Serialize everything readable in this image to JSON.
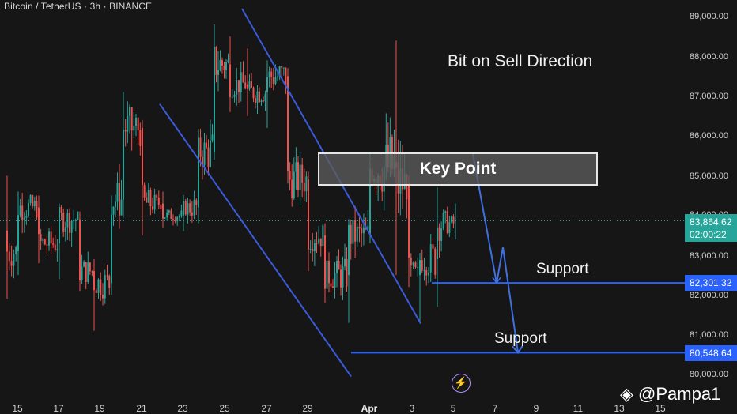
{
  "symbol": "Bitcoin / TetherUS · 3h · BINANCE",
  "annotations": {
    "direction": "Bit on Sell Direction",
    "key_point": "Key Point",
    "support_1": "Support",
    "support_2": "Support"
  },
  "price_tags": {
    "current_price": "83,864.62",
    "countdown": "02:00:22",
    "support_1": "82,301.32",
    "support_2": "80,548.64"
  },
  "y_axis_ticks": [
    "89,000.00",
    "88,000.00",
    "87,000.00",
    "86,000.00",
    "85,000.00",
    "84,000.00",
    "83,000.00",
    "82,000.00",
    "81,000.00",
    "80,000.00"
  ],
  "x_axis_ticks": [
    "15",
    "17",
    "19",
    "21",
    "23",
    "25",
    "27",
    "29",
    "Apr",
    "3",
    "5",
    "7",
    "9",
    "11",
    "13",
    "15"
  ],
  "watermark": "@Pampa1",
  "colors": {
    "background": "#161616",
    "up_candle": "#26a69a",
    "down_candle": "#ef5350",
    "trendline": "#3b5bdb",
    "support_line": "#2962ff",
    "projection_arrow": "#3f6fe0"
  },
  "chart_data": {
    "type": "candlestick",
    "title": "Bitcoin / TetherUS · 3h · BINANCE",
    "ylim": [
      79950,
      89200
    ],
    "current_price": 83864.62,
    "support_levels": [
      82301.32,
      80548.64
    ],
    "key_point_zone": [
      84860,
      85600
    ],
    "channel_lines": [
      {
        "from": [
          "Mar 20",
          86800
        ],
        "to": [
          "Mar 31",
          79950
        ]
      },
      {
        "from": [
          "Mar 24",
          89200
        ],
        "to": [
          "Apr 3",
          81280
        ]
      }
    ],
    "projection_path": [
      [
        "Apr 5",
        85550
      ],
      [
        "Apr 7",
        82301.32
      ],
      [
        "Apr 7",
        83200
      ],
      [
        "Apr 8",
        80548.64
      ]
    ],
    "candles": [
      {
        "t": "Mar 14",
        "o": 83620,
        "h": 85000,
        "l": 81900,
        "c": 83100
      },
      {
        "t": "Mar 15",
        "o": 83100,
        "h": 84600,
        "l": 82500,
        "c": 84200
      },
      {
        "t": "Mar 16",
        "o": 84200,
        "h": 84500,
        "l": 82800,
        "c": 83300
      },
      {
        "t": "Mar 17",
        "o": 83300,
        "h": 84300,
        "l": 82400,
        "c": 83900
      },
      {
        "t": "Mar 18",
        "o": 83900,
        "h": 84100,
        "l": 82100,
        "c": 82600
      },
      {
        "t": "Mar 19",
        "o": 82600,
        "h": 82900,
        "l": 81100,
        "c": 82300
      },
      {
        "t": "Mar 19b",
        "o": 82300,
        "h": 84500,
        "l": 82000,
        "c": 84400
      },
      {
        "t": "Mar 20",
        "o": 84400,
        "h": 87100,
        "l": 84000,
        "c": 86200
      },
      {
        "t": "Mar 21",
        "o": 86200,
        "h": 86400,
        "l": 83500,
        "c": 84300
      },
      {
        "t": "Mar 22",
        "o": 84300,
        "h": 84600,
        "l": 83700,
        "c": 84000
      },
      {
        "t": "Mar 23",
        "o": 84000,
        "h": 84500,
        "l": 83600,
        "c": 84200
      },
      {
        "t": "Mar 23b",
        "o": 84200,
        "h": 85800,
        "l": 83800,
        "c": 85600
      },
      {
        "t": "Mar 24",
        "o": 85600,
        "h": 88800,
        "l": 85400,
        "c": 87800
      },
      {
        "t": "Mar 25",
        "o": 87800,
        "h": 88500,
        "l": 86600,
        "c": 87300
      },
      {
        "t": "Mar 26",
        "o": 87300,
        "h": 88200,
        "l": 86500,
        "c": 87100
      },
      {
        "t": "Mar 27",
        "o": 87100,
        "h": 87900,
        "l": 86200,
        "c": 87500
      },
      {
        "t": "Mar 28",
        "o": 87500,
        "h": 87700,
        "l": 84800,
        "c": 84900
      },
      {
        "t": "Mar 29",
        "o": 84900,
        "h": 85100,
        "l": 82600,
        "c": 83500
      },
      {
        "t": "Mar 30",
        "o": 83500,
        "h": 83800,
        "l": 81800,
        "c": 82500
      },
      {
        "t": "Mar 31",
        "o": 82500,
        "h": 83800,
        "l": 81300,
        "c": 83500
      },
      {
        "t": "Apr 1",
        "o": 83500,
        "h": 85600,
        "l": 83300,
        "c": 85200
      },
      {
        "t": "Apr 2",
        "o": 85200,
        "h": 88400,
        "l": 82500,
        "c": 84800
      },
      {
        "t": "Apr 2b",
        "o": 84800,
        "h": 85000,
        "l": 82200,
        "c": 82500
      },
      {
        "t": "Apr 3",
        "o": 82500,
        "h": 83000,
        "l": 81300,
        "c": 82900
      },
      {
        "t": "Apr 4",
        "o": 82900,
        "h": 84700,
        "l": 81700,
        "c": 83800
      },
      {
        "t": "Apr 5",
        "o": 83800,
        "h": 84300,
        "l": 83400,
        "c": 83860
      }
    ]
  }
}
